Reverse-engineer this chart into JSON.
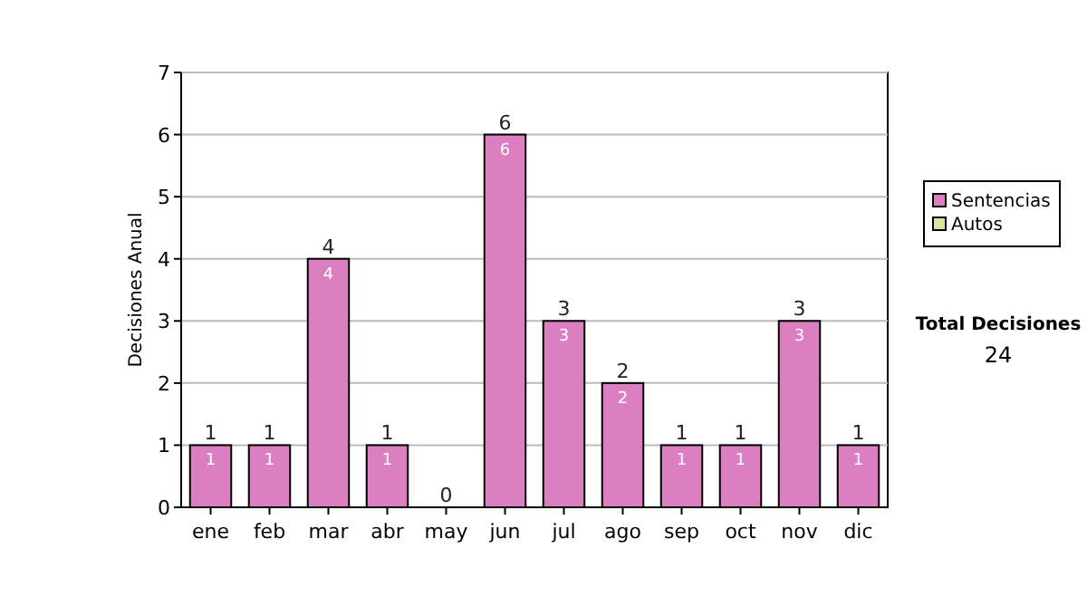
{
  "chart_data": {
    "type": "bar",
    "ylabel": "Decisiones Anual",
    "categories": [
      "ene",
      "feb",
      "mar",
      "abr",
      "may",
      "jun",
      "jul",
      "ago",
      "sep",
      "oct",
      "nov",
      "dic"
    ],
    "series": [
      {
        "name": "Sentencias",
        "color": "#dc7fc0",
        "values": [
          1,
          1,
          4,
          1,
          0,
          6,
          3,
          2,
          1,
          1,
          3,
          1
        ],
        "value_labels": [
          "1",
          "1",
          "4",
          "1",
          null,
          "6",
          "3",
          "2",
          "1",
          "1",
          "3",
          "1"
        ]
      },
      {
        "name": "Autos",
        "color": "#d4e6a0",
        "values": [
          0,
          0,
          0,
          0,
          0,
          0,
          0,
          0,
          0,
          0,
          0,
          0
        ]
      }
    ],
    "stacked": true,
    "totals": [
      "1",
      "1",
      "4",
      "1",
      "0",
      "6",
      "3",
      "2",
      "1",
      "1",
      "3",
      "1"
    ],
    "ylim": [
      0,
      7
    ],
    "yticks": [
      0,
      1,
      2,
      3,
      4,
      5,
      6,
      7
    ],
    "grid": "y",
    "legend": "right",
    "annotations": [
      "Total Decisiones",
      "24"
    ]
  }
}
